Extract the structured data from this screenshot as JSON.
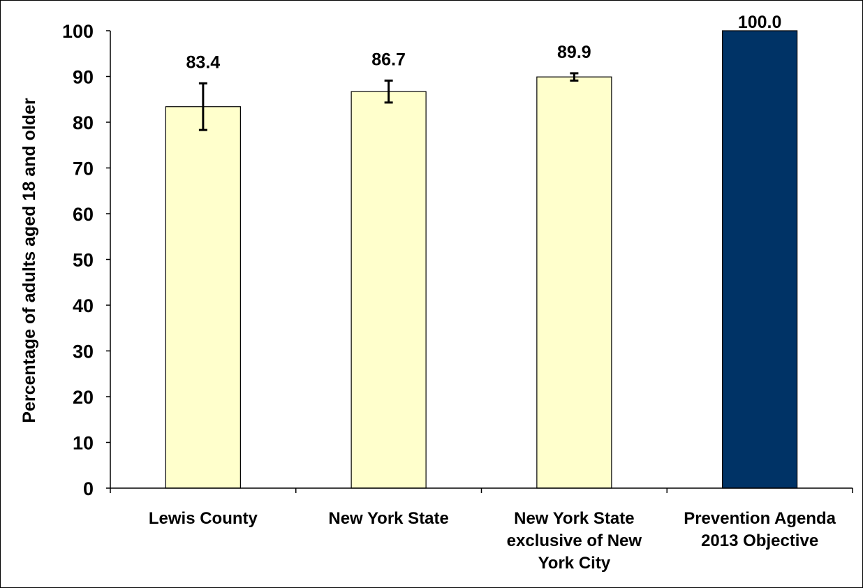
{
  "chart_data": {
    "type": "bar",
    "title": "",
    "xlabel": "",
    "ylabel": "Percentage of adults aged 18 and older",
    "ylim": [
      0,
      100
    ],
    "yticks": [
      0,
      10,
      20,
      30,
      40,
      50,
      60,
      70,
      80,
      90,
      100
    ],
    "grid": false,
    "legend": "none",
    "categories": [
      [
        "Lewis County"
      ],
      [
        "New York State"
      ],
      [
        "New York State",
        "exclusive of New",
        "York City"
      ],
      [
        "Prevention Agenda",
        "2013 Objective"
      ]
    ],
    "values": [
      83.4,
      86.7,
      89.9,
      100.0
    ],
    "value_labels": [
      "83.4",
      "86.7",
      "89.9",
      "100.0"
    ],
    "error_bars": [
      {
        "low": 78.3,
        "high": 88.5
      },
      {
        "low": 84.3,
        "high": 89.1
      },
      {
        "low": 89.1,
        "high": 90.7
      },
      null
    ],
    "colors": [
      "#FFFFCC",
      "#FFFFCC",
      "#FFFFCC",
      "#003366"
    ],
    "bar_outline": "#000000"
  }
}
